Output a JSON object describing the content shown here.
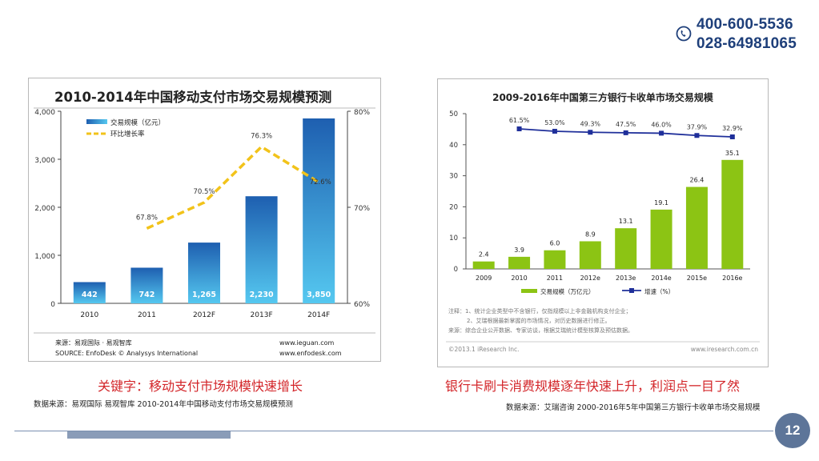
{
  "header": {
    "phone_1": "400-600-5536",
    "phone_2": "028-64981065",
    "icon": "phone-icon"
  },
  "left_panel": {
    "caption": "关键字：移动支付市场规模快速增长",
    "source_line": "数据来源：易观国际 易观智库 2010-2014年中国移动支付市场交易规模预测",
    "chart_source_cn": "来源：易观国际 · 易观智库",
    "chart_source_en": "SOURCE: EnfoDesk © Analysys International",
    "site_1": "www.ieguan.com",
    "site_2": "www.enfodesk.com"
  },
  "right_panel": {
    "caption": "银行卡刷卡消费规模逐年快速上升，利润点一目了然",
    "source_line": "数据来源：艾瑞咨询 2000-2016年5年中国第三方银行卡收单市场交易规模",
    "note_1": "注释：1、统计企业类型中不含银行，仅指规模以上非金融机构支付企业；",
    "note_2": "2、艾瑞根据最新掌握的市场情况，对历史数据进行修正。",
    "note_3": "来源：综合企业公开数据、专家访谈，根据艾瑞统计模型核算及预估数据。",
    "footer_left": "©2013.1 iResearch Inc.",
    "footer_right": "www.iresearch.com.cn"
  },
  "page_number": "12",
  "colors": {
    "brand_navy": "#1e3f7a",
    "caption_red": "#d3262a",
    "blue_bar": "#2a7fd0",
    "green_bar": "#8cc414",
    "growth_line_yellow": "#f2c31a",
    "growth_line_navy": "#1f2f9a",
    "page_badge": "#5d7599"
  },
  "chart_data": [
    {
      "type": "bar",
      "title": "2010-2014年中国移动支付市场交易规模预测",
      "categories": [
        "2010",
        "2011",
        "2012F",
        "2013F",
        "2014F"
      ],
      "series": [
        {
          "name": "交易规模（亿元）",
          "values": [
            442,
            742,
            1265,
            2230,
            3850
          ],
          "labels": [
            "442",
            "742",
            "1,265",
            "2,230",
            "3,850"
          ],
          "axis": "left"
        },
        {
          "name": "环比增长率",
          "type": "line",
          "values": [
            null,
            67.8,
            70.5,
            76.3,
            72.6
          ],
          "labels": [
            "",
            "67.8%",
            "70.5%",
            "76.3%",
            "72.6%"
          ],
          "axis": "right"
        }
      ],
      "ylim": [
        0,
        4000
      ],
      "yticks": [
        0,
        1000,
        2000,
        3000,
        4000
      ],
      "ytick_labels": [
        "0",
        "1,000",
        "2,000",
        "3,000",
        "4,000"
      ],
      "y2lim": [
        60,
        80
      ],
      "y2ticks": [
        60,
        70,
        80
      ],
      "y2tick_labels": [
        "60%",
        "70%",
        "80%"
      ],
      "xlabel": "",
      "ylabel": "",
      "legend": "top-left",
      "grid": false
    },
    {
      "type": "bar",
      "title": "2009-2016年中国第三方银行卡收单市场交易规模",
      "categories": [
        "2009",
        "2010",
        "2011",
        "2012e",
        "2013e",
        "2014e",
        "2015e",
        "2016e"
      ],
      "series": [
        {
          "name": "交易规模（万亿元）",
          "values": [
            2.4,
            3.9,
            6.0,
            8.9,
            13.1,
            19.1,
            26.4,
            35.1
          ],
          "labels": [
            "2.4",
            "3.9",
            "6.0",
            "8.9",
            "13.1",
            "19.1",
            "26.4",
            "35.1"
          ],
          "axis": "left"
        },
        {
          "name": "增速（%）",
          "type": "line",
          "values": [
            null,
            61.5,
            53.0,
            49.3,
            47.5,
            46.0,
            37.9,
            32.9
          ],
          "labels": [
            "",
            "61.5%",
            "53.0%",
            "49.3%",
            "47.5%",
            "46.0%",
            "37.9%",
            "32.9%"
          ],
          "axis": "none"
        }
      ],
      "ylim": [
        0,
        50
      ],
      "yticks": [
        0,
        10,
        20,
        30,
        40,
        50
      ],
      "ytick_labels": [
        "0",
        "10",
        "20",
        "30",
        "40",
        "50"
      ],
      "xlabel": "",
      "ylabel": "",
      "legend": "bottom-left",
      "grid": false
    }
  ]
}
